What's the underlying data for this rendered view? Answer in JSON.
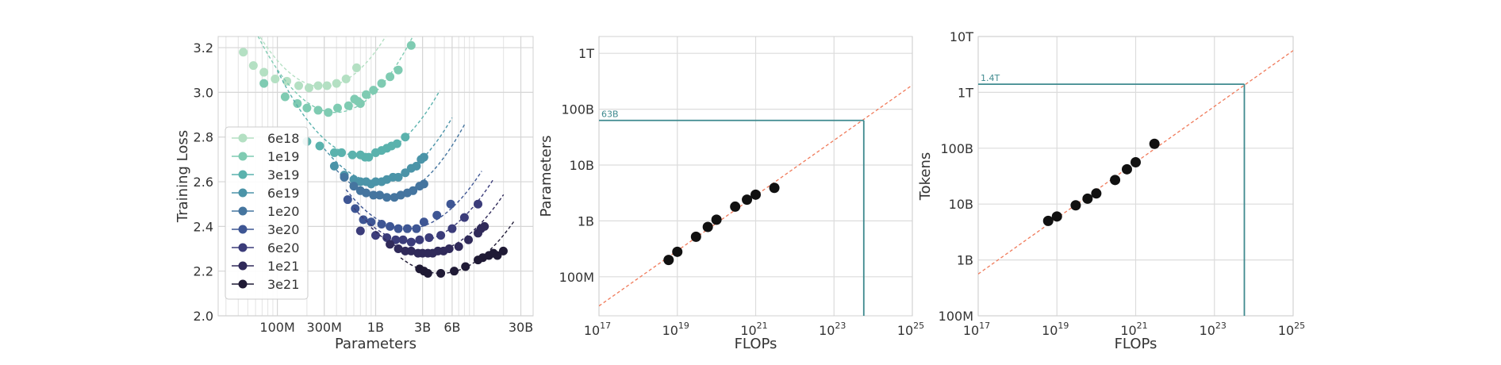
{
  "chart_data": [
    {
      "type": "line",
      "xlabel": "Parameters",
      "ylabel": "Training Loss",
      "x_scale": "log",
      "xlim": [
        25000000,
        40000000000
      ],
      "ylim": [
        2.0,
        3.25
      ],
      "x_ticks": [
        {
          "value": 100000000,
          "label": "100M"
        },
        {
          "value": 300000000,
          "label": "300M"
        },
        {
          "value": 1000000000,
          "label": "1B"
        },
        {
          "value": 3000000000,
          "label": "3B"
        },
        {
          "value": 6000000000,
          "label": "6B"
        },
        {
          "value": 30000000000,
          "label": "30B"
        }
      ],
      "y_ticks": [
        {
          "value": 2.0,
          "label": "2.0"
        },
        {
          "value": 2.2,
          "label": "2.2"
        },
        {
          "value": 2.4,
          "label": "2.4"
        },
        {
          "value": 2.6,
          "label": "2.6"
        },
        {
          "value": 2.8,
          "label": "2.8"
        },
        {
          "value": 3.0,
          "label": "3.0"
        },
        {
          "value": 3.2,
          "label": "3.2"
        }
      ],
      "grid": true,
      "legend_position": "lower-left",
      "series": [
        {
          "name": "6e18",
          "color": "#b4e0c3",
          "fit": {
            "min_loss": 3.025,
            "opt_params": 290000000,
            "k": 0.55,
            "range": [
              30000000,
              1500000000
            ]
          },
          "points": [
            [
              45000000,
              3.18
            ],
            [
              57000000,
              3.12
            ],
            [
              73000000,
              3.09
            ],
            [
              95000000,
              3.06
            ],
            [
              125000000,
              3.05
            ],
            [
              165000000,
              3.03
            ],
            [
              210000000,
              3.02
            ],
            [
              260000000,
              3.03
            ],
            [
              320000000,
              3.03
            ],
            [
              400000000,
              3.04
            ],
            [
              500000000,
              3.06
            ],
            [
              640000000,
              3.11
            ]
          ]
        },
        {
          "name": "1e19",
          "color": "#7fcbb2",
          "fit": {
            "min_loss": 2.91,
            "opt_params": 390000000,
            "k": 0.55,
            "range": [
              60000000,
              2800000000
            ]
          },
          "points": [
            [
              73000000,
              3.04
            ],
            [
              120000000,
              2.98
            ],
            [
              160000000,
              2.95
            ],
            [
              200000000,
              2.93
            ],
            [
              260000000,
              2.92
            ],
            [
              330000000,
              2.91
            ],
            [
              410000000,
              2.93
            ],
            [
              530000000,
              2.94
            ],
            [
              610000000,
              2.97
            ],
            [
              660000000,
              2.96
            ],
            [
              700000000,
              2.95
            ],
            [
              800000000,
              2.99
            ],
            [
              950000000,
              3.01
            ],
            [
              1150000000,
              3.04
            ],
            [
              1400000000,
              3.07
            ],
            [
              1700000000,
              3.1
            ],
            [
              2300000000,
              3.21
            ]
          ]
        },
        {
          "name": "3e19",
          "color": "#5ab2ad",
          "fit": {
            "min_loss": 2.71,
            "opt_params": 760000000,
            "k": 0.5,
            "range": [
              100000000,
              4500000000
            ]
          },
          "points": [
            [
              200000000,
              2.78
            ],
            [
              270000000,
              2.76
            ],
            [
              380000000,
              2.73
            ],
            [
              450000000,
              2.73
            ],
            [
              580000000,
              2.72
            ],
            [
              700000000,
              2.72
            ],
            [
              780000000,
              2.71
            ],
            [
              850000000,
              2.71
            ],
            [
              1000000000,
              2.73
            ],
            [
              1150000000,
              2.74
            ],
            [
              1300000000,
              2.75
            ],
            [
              1450000000,
              2.76
            ],
            [
              1650000000,
              2.77
            ],
            [
              2000000000,
              2.8
            ]
          ]
        },
        {
          "name": "6e19",
          "color": "#4b94a8",
          "fit": {
            "min_loss": 2.6,
            "opt_params": 1050000000,
            "k": 0.5,
            "range": [
              300000000,
              6000000000
            ]
          },
          "points": [
            [
              380000000,
              2.67
            ],
            [
              480000000,
              2.63
            ],
            [
              600000000,
              2.61
            ],
            [
              700000000,
              2.6
            ],
            [
              800000000,
              2.6
            ],
            [
              900000000,
              2.59
            ],
            [
              1000000000,
              2.6
            ],
            [
              1150000000,
              2.6
            ],
            [
              1300000000,
              2.61
            ],
            [
              1500000000,
              2.62
            ],
            [
              1700000000,
              2.62
            ],
            [
              2000000000,
              2.64
            ],
            [
              2300000000,
              2.66
            ],
            [
              2600000000,
              2.67
            ],
            [
              2900000000,
              2.7
            ],
            [
              3100000000,
              2.71
            ]
          ]
        },
        {
          "name": "1e20",
          "color": "#45759f",
          "fit": {
            "min_loss": 2.53,
            "opt_params": 1250000000,
            "k": 0.5,
            "range": [
              400000000,
              8000000000
            ]
          },
          "points": [
            [
              480000000,
              2.62
            ],
            [
              600000000,
              2.58
            ],
            [
              700000000,
              2.56
            ],
            [
              800000000,
              2.55
            ],
            [
              950000000,
              2.54
            ],
            [
              1100000000,
              2.54
            ],
            [
              1300000000,
              2.53
            ],
            [
              1550000000,
              2.53
            ],
            [
              1800000000,
              2.54
            ],
            [
              2100000000,
              2.55
            ],
            [
              2400000000,
              2.56
            ],
            [
              2800000000,
              2.58
            ],
            [
              3100000000,
              2.59
            ]
          ]
        },
        {
          "name": "3e20",
          "color": "#3e5694",
          "fit": {
            "min_loss": 2.39,
            "opt_params": 2100000000,
            "k": 0.45,
            "range": [
              500000000,
              12000000000
            ]
          },
          "points": [
            [
              520000000,
              2.52
            ],
            [
              620000000,
              2.48
            ],
            [
              750000000,
              2.43
            ],
            [
              900000000,
              2.42
            ],
            [
              1150000000,
              2.41
            ],
            [
              1400000000,
              2.4
            ],
            [
              1700000000,
              2.39
            ],
            [
              2100000000,
              2.39
            ],
            [
              2600000000,
              2.39
            ],
            [
              3100000000,
              2.42
            ],
            [
              4200000000,
              2.45
            ],
            [
              5800000000,
              2.5
            ]
          ]
        },
        {
          "name": "6e20",
          "color": "#3b3c7a",
          "fit": {
            "min_loss": 2.33,
            "opt_params": 2400000000,
            "k": 0.42,
            "range": [
              600000000,
              16000000000
            ]
          },
          "points": [
            [
              700000000,
              2.38
            ],
            [
              1000000000,
              2.36
            ],
            [
              1300000000,
              2.35
            ],
            [
              1600000000,
              2.34
            ],
            [
              1900000000,
              2.34
            ],
            [
              2300000000,
              2.33
            ],
            [
              2800000000,
              2.34
            ],
            [
              3500000000,
              2.35
            ],
            [
              4600000000,
              2.36
            ],
            [
              6000000000,
              2.39
            ],
            [
              8000000000,
              2.44
            ],
            [
              11000000000,
              2.5
            ]
          ]
        },
        {
          "name": "1e21",
          "color": "#302a5a",
          "fit": {
            "min_loss": 2.28,
            "opt_params": 3100000000,
            "k": 0.4,
            "range": [
              900000000,
              20000000000
            ]
          },
          "points": [
            [
              1400000000,
              2.32
            ],
            [
              1700000000,
              2.3
            ],
            [
              2000000000,
              2.29
            ],
            [
              2300000000,
              2.29
            ],
            [
              2700000000,
              2.28
            ],
            [
              3000000000,
              2.28
            ],
            [
              3400000000,
              2.28
            ],
            [
              3800000000,
              2.28
            ],
            [
              4300000000,
              2.29
            ],
            [
              4900000000,
              2.29
            ],
            [
              5600000000,
              2.3
            ],
            [
              7000000000,
              2.31
            ],
            [
              8800000000,
              2.34
            ],
            [
              11000000000,
              2.37
            ],
            [
              11800000000,
              2.39
            ],
            [
              12800000000,
              2.4
            ]
          ]
        },
        {
          "name": "3e21",
          "color": "#1f1a35",
          "fit": {
            "min_loss": 2.19,
            "opt_params": 4600000000,
            "k": 0.42,
            "range": [
              1800000000,
              26000000000
            ]
          },
          "points": [
            [
              2800000000,
              2.21
            ],
            [
              3100000000,
              2.2
            ],
            [
              3400000000,
              2.19
            ],
            [
              4600000000,
              2.19
            ],
            [
              6300000000,
              2.2
            ],
            [
              8200000000,
              2.22
            ],
            [
              11000000000,
              2.25
            ],
            [
              12300000000,
              2.26
            ],
            [
              14200000000,
              2.27
            ],
            [
              15800000000,
              2.28
            ],
            [
              17300000000,
              2.27
            ],
            [
              19900000000,
              2.29
            ]
          ]
        }
      ]
    },
    {
      "type": "scatter",
      "xlabel": "FLOPs",
      "ylabel": "Parameters",
      "x_scale": "log",
      "y_scale": "log",
      "xlim": [
        1e+17,
        1e+25
      ],
      "ylim": [
        20000000,
        2000000000000
      ],
      "x_ticks": [
        {
          "value": 1e+17,
          "base": "10",
          "exp": "17"
        },
        {
          "value": 1e+19,
          "base": "10",
          "exp": "19"
        },
        {
          "value": 1e+21,
          "base": "10",
          "exp": "21"
        },
        {
          "value": 1e+23,
          "base": "10",
          "exp": "23"
        },
        {
          "value": 1e+25,
          "base": "10",
          "exp": "25"
        }
      ],
      "y_ticks": [
        {
          "value": 100000000,
          "label": "100M"
        },
        {
          "value": 1000000000,
          "label": "1B"
        },
        {
          "value": 10000000000,
          "label": "10B"
        },
        {
          "value": 100000000000,
          "label": "100B"
        },
        {
          "value": 1000000000000,
          "label": "1T"
        }
      ],
      "grid": true,
      "points": [
        [
          6e+18,
          200000000
        ],
        [
          1e+19,
          280000000
        ],
        [
          3e+19,
          520000000
        ],
        [
          6e+19,
          780000000
        ],
        [
          1e+20,
          1050000000
        ],
        [
          3e+20,
          1800000000
        ],
        [
          6e+20,
          2400000000
        ],
        [
          1e+21,
          2950000000
        ],
        [
          3e+21,
          3900000000
        ]
      ],
      "fit_line": {
        "x": [
          1e+17,
          1e+25
        ],
        "y": [
          30000000,
          270000000000
        ],
        "color": "#f07a5a"
      },
      "annotation": {
        "label": "63B",
        "x": 5.76e+23,
        "y": 63000000000,
        "color": "#3f8a8f"
      }
    },
    {
      "type": "scatter",
      "xlabel": "FLOPs",
      "ylabel": "Tokens",
      "x_scale": "log",
      "y_scale": "log",
      "xlim": [
        1e+17,
        1e+25
      ],
      "ylim": [
        100000000,
        10000000000000
      ],
      "x_ticks": [
        {
          "value": 1e+17,
          "base": "10",
          "exp": "17"
        },
        {
          "value": 1e+19,
          "base": "10",
          "exp": "19"
        },
        {
          "value": 1e+21,
          "base": "10",
          "exp": "21"
        },
        {
          "value": 1e+23,
          "base": "10",
          "exp": "23"
        },
        {
          "value": 1e+25,
          "base": "10",
          "exp": "25"
        }
      ],
      "y_ticks": [
        {
          "value": 100000000,
          "label": "100M"
        },
        {
          "value": 1000000000,
          "label": "1B"
        },
        {
          "value": 10000000000,
          "label": "10B"
        },
        {
          "value": 100000000000,
          "label": "100B"
        },
        {
          "value": 1000000000000,
          "label": "1T"
        },
        {
          "value": 10000000000000,
          "label": "10T"
        }
      ],
      "grid": true,
      "points": [
        [
          6e+18,
          5000000000
        ],
        [
          1e+19,
          6000000000
        ],
        [
          3e+19,
          9500000000
        ],
        [
          6e+19,
          12500000000
        ],
        [
          1e+20,
          15500000000
        ],
        [
          3e+20,
          27000000000
        ],
        [
          6e+20,
          42000000000
        ],
        [
          1e+21,
          56000000000
        ],
        [
          3e+21,
          120000000000
        ]
      ],
      "fit_line": {
        "x": [
          1e+17,
          1e+25
        ],
        "y": [
          560000000,
          5600000000000
        ],
        "color": "#f07a5a"
      },
      "annotation": {
        "label": "1.4T",
        "x": 5.76e+23,
        "y": 1400000000000,
        "color": "#3f8a8f"
      }
    }
  ]
}
